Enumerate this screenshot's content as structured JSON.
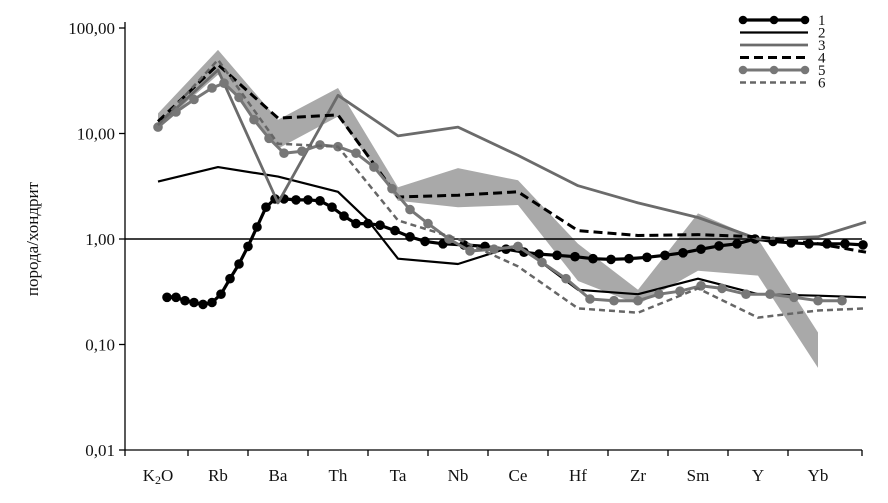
{
  "chart_data": {
    "type": "line",
    "title": "",
    "xlabel": "",
    "ylabel": "порода/хондрит",
    "yscale": "log",
    "ylim": [
      0.01,
      100
    ],
    "ytick_labels": [
      "100,00",
      "10,00",
      "1,00",
      "0,10",
      "0,01"
    ],
    "ytick_values": [
      100,
      10,
      1,
      0.1,
      0.01
    ],
    "reference_line": 1,
    "grid": false,
    "legend_position": "top-right",
    "categories": [
      "K2O",
      "Rb",
      "Ba",
      "Th",
      "Ta",
      "Nb",
      "Ce",
      "Hf",
      "Zr",
      "Sm",
      "Y",
      "Yb"
    ],
    "band": {
      "color": "#a9a9a9",
      "x": [
        0,
        1,
        2,
        3,
        4,
        5,
        6,
        7,
        8,
        9,
        10,
        11
      ],
      "upper": [
        15.5,
        62,
        13.5,
        27,
        3.1,
        4.7,
        3.6,
        0.9,
        0.33,
        1.75,
        1.0,
        0.13
      ],
      "lower": [
        11.5,
        36,
        7.2,
        14.5,
        2.3,
        2.0,
        2.1,
        0.4,
        0.24,
        0.5,
        0.45,
        0.06
      ]
    },
    "series": [
      {
        "name": "1",
        "color": "#000000",
        "width": 3.2,
        "dash": "none",
        "marker": true,
        "x": [
          0.15,
          0.3,
          0.45,
          0.6,
          0.75,
          0.9,
          1.05,
          1.2,
          1.35,
          1.5,
          1.65,
          1.8,
          1.95,
          2.1,
          2.3,
          2.5,
          2.7,
          2.9,
          3.1,
          3.3,
          3.5,
          3.7,
          3.95,
          4.2,
          4.45,
          4.75,
          5.1,
          5.45,
          5.8,
          6.1,
          6.35,
          6.65,
          6.95,
          7.25,
          7.55,
          7.85,
          8.15,
          8.45,
          8.75,
          9.05,
          9.35,
          9.65,
          9.95,
          10.25,
          10.55,
          10.85,
          11.15,
          11.45,
          11.75
        ],
        "values": [
          0.28,
          0.28,
          0.26,
          0.25,
          0.24,
          0.25,
          0.3,
          0.42,
          0.58,
          0.85,
          1.3,
          2.0,
          2.4,
          2.4,
          2.35,
          2.35,
          2.3,
          2.0,
          1.65,
          1.4,
          1.4,
          1.35,
          1.2,
          1.05,
          0.95,
          0.9,
          0.88,
          0.85,
          0.8,
          0.75,
          0.72,
          0.7,
          0.68,
          0.65,
          0.64,
          0.65,
          0.67,
          0.7,
          0.74,
          0.8,
          0.86,
          0.9,
          1.0,
          0.95,
          0.92,
          0.9,
          0.9,
          0.9,
          0.88
        ]
      },
      {
        "name": "2",
        "color": "#000000",
        "width": 2.2,
        "dash": "none",
        "marker": false,
        "x": [
          0,
          1,
          2,
          3,
          3.5,
          4,
          5,
          6,
          7,
          8,
          9,
          10,
          11,
          11.8
        ],
        "values": [
          3.5,
          4.8,
          3.9,
          2.8,
          1.5,
          0.65,
          0.58,
          0.88,
          0.33,
          0.3,
          0.42,
          0.3,
          0.29,
          0.28
        ]
      },
      {
        "name": "3",
        "color": "#6b6b6b",
        "width": 2.8,
        "dash": "none",
        "marker": false,
        "x": [
          0,
          1,
          2,
          3,
          4,
          5,
          6,
          7,
          8,
          9,
          10,
          11,
          11.8
        ],
        "values": [
          12,
          40,
          2.2,
          23,
          9.5,
          11.5,
          6.2,
          3.2,
          2.2,
          1.6,
          1.0,
          1.05,
          1.45
        ]
      },
      {
        "name": "4",
        "color": "#000000",
        "width": 3.0,
        "dash": "9,5",
        "marker": false,
        "x": [
          0,
          1,
          2,
          3,
          4,
          5,
          6,
          7,
          8,
          9,
          10,
          11,
          11.8
        ],
        "values": [
          13,
          45,
          14,
          15,
          2.5,
          2.6,
          2.8,
          1.2,
          1.08,
          1.1,
          1.05,
          0.9,
          0.75
        ]
      },
      {
        "name": "5",
        "color": "#777777",
        "width": 3.0,
        "dash": "none",
        "marker": true,
        "x": [
          0,
          0.3,
          0.6,
          0.9,
          1.1,
          1.35,
          1.6,
          1.85,
          2.1,
          2.4,
          2.7,
          3.0,
          3.3,
          3.6,
          3.9,
          4.2,
          4.5,
          4.85,
          5.2,
          5.6,
          6.0,
          6.4,
          6.8,
          7.2,
          7.6,
          8.0,
          8.35,
          8.7,
          9.05,
          9.4,
          9.8,
          10.2,
          10.6,
          11.0,
          11.4
        ],
        "values": [
          11.5,
          16,
          21,
          27,
          30,
          22,
          13.5,
          9,
          6.5,
          6.8,
          7.8,
          7.5,
          6.5,
          4.8,
          3.0,
          1.9,
          1.4,
          1.0,
          0.77,
          0.8,
          0.85,
          0.6,
          0.42,
          0.27,
          0.26,
          0.26,
          0.3,
          0.32,
          0.36,
          0.34,
          0.3,
          0.3,
          0.28,
          0.26,
          0.26
        ]
      },
      {
        "name": "6",
        "color": "#666666",
        "width": 2.5,
        "dash": "6,4",
        "marker": false,
        "x": [
          0,
          1,
          2,
          3,
          4,
          5,
          6,
          7,
          8,
          9,
          10,
          11,
          11.8
        ],
        "values": [
          12,
          50,
          8,
          7.5,
          1.5,
          1.0,
          0.55,
          0.22,
          0.2,
          0.34,
          0.18,
          0.21,
          0.22
        ]
      }
    ]
  },
  "axis": {
    "y_label": "порода/хондрит",
    "y_ticks": [
      "100,00",
      "10,00",
      "1,00",
      "0,10",
      "0,01"
    ],
    "x_labels": [
      {
        "main": "K",
        "sub": "2",
        "rest": "O"
      },
      {
        "main": "Rb",
        "sub": "",
        "rest": ""
      },
      {
        "main": "Ba",
        "sub": "",
        "rest": ""
      },
      {
        "main": "Th",
        "sub": "",
        "rest": ""
      },
      {
        "main": "Ta",
        "sub": "",
        "rest": ""
      },
      {
        "main": "Nb",
        "sub": "",
        "rest": ""
      },
      {
        "main": "Ce",
        "sub": "",
        "rest": ""
      },
      {
        "main": "Hf",
        "sub": "",
        "rest": ""
      },
      {
        "main": "Zr",
        "sub": "",
        "rest": ""
      },
      {
        "main": "Sm",
        "sub": "",
        "rest": ""
      },
      {
        "main": "Y",
        "sub": "",
        "rest": ""
      },
      {
        "main": "Yb",
        "sub": "",
        "rest": ""
      }
    ]
  },
  "legend": {
    "items": [
      {
        "label": "1",
        "series": 0
      },
      {
        "label": "2",
        "series": 1
      },
      {
        "label": "3",
        "series": 2
      },
      {
        "label": "4",
        "series": 3
      },
      {
        "label": "5",
        "series": 4
      },
      {
        "label": "6",
        "series": 5
      }
    ]
  }
}
